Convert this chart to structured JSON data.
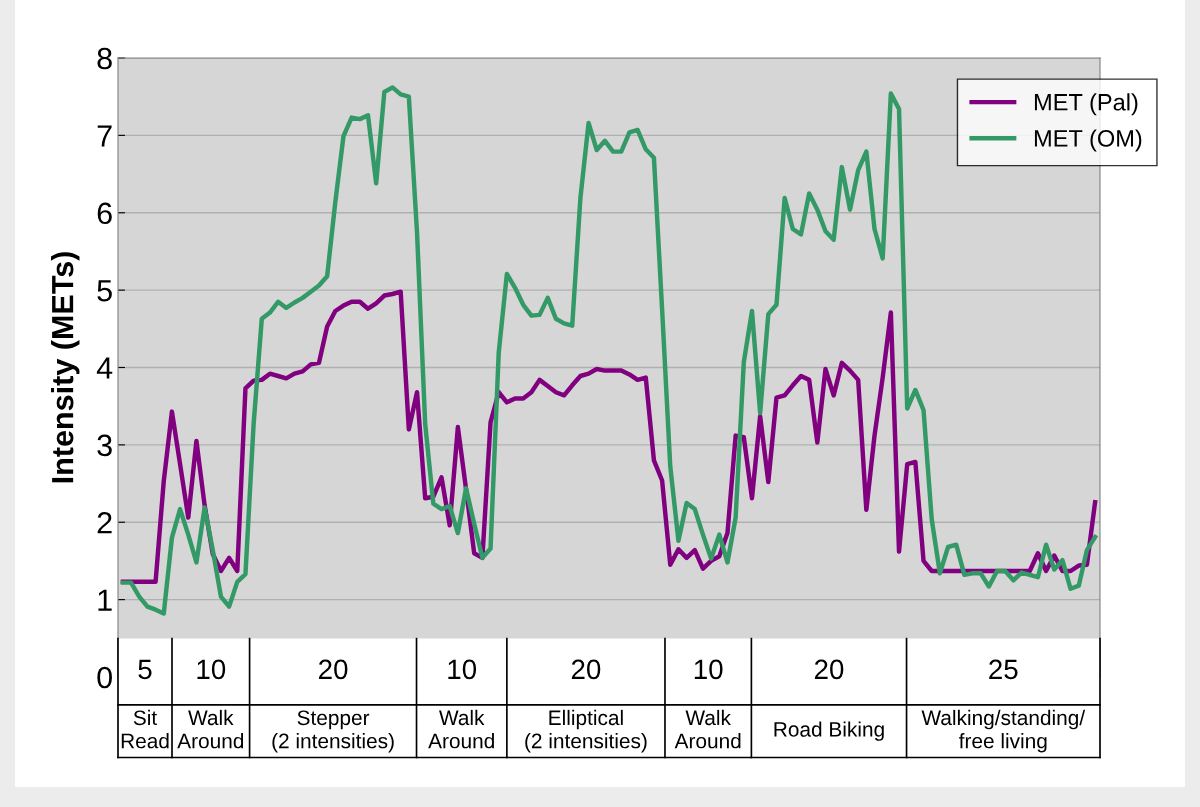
{
  "chart_data": {
    "type": "line",
    "ylabel": "Intensity (METs)",
    "categories": [
      null,
      null,
      null,
      null,
      null,
      null,
      null,
      null,
      null,
      null,
      null,
      null,
      null,
      null,
      null,
      null,
      null,
      null,
      null,
      null,
      null,
      null,
      null,
      null,
      null,
      null,
      null,
      null,
      null,
      null,
      null,
      null,
      null,
      null,
      null,
      null,
      null,
      null,
      null,
      null,
      null,
      null,
      null,
      null,
      null,
      null,
      null,
      null,
      null,
      null,
      null,
      null,
      null,
      null,
      null,
      null,
      null,
      null,
      null,
      null,
      null,
      null,
      null,
      null,
      null,
      null,
      null,
      null,
      null,
      null,
      null,
      null,
      null,
      null,
      null,
      null,
      null,
      null,
      null,
      null,
      null,
      null,
      null,
      null,
      null,
      null,
      null,
      null,
      null,
      null,
      null,
      null,
      null,
      null,
      null,
      null,
      null,
      null,
      null,
      null,
      null,
      null,
      null,
      null,
      null,
      null,
      null,
      null,
      null,
      null,
      null,
      null,
      null,
      null,
      null,
      null,
      null,
      null,
      null,
      null
    ],
    "series": [
      {
        "name": "MET (Pal)",
        "color": "#800080",
        "values": [
          1.23,
          1.23,
          1.23,
          1.23,
          1.23,
          2.53,
          3.43,
          2.75,
          2.06,
          3.05,
          2.22,
          1.59,
          1.37,
          1.54,
          1.37,
          3.73,
          3.83,
          3.84,
          3.92,
          3.89,
          3.86,
          3.92,
          3.95,
          4.04,
          4.06,
          4.53,
          4.73,
          4.8,
          4.85,
          4.85,
          4.76,
          4.83,
          4.93,
          4.95,
          4.98,
          3.2,
          3.68,
          2.31,
          2.33,
          2.58,
          1.96,
          3.23,
          2.43,
          1.6,
          1.54,
          3.29,
          3.68,
          3.55,
          3.6,
          3.6,
          3.68,
          3.84,
          3.76,
          3.68,
          3.64,
          3.77,
          3.89,
          3.92,
          3.98,
          3.96,
          3.96,
          3.96,
          3.91,
          3.84,
          3.87,
          2.8,
          2.54,
          1.45,
          1.65,
          1.54,
          1.64,
          1.4,
          1.5,
          1.56,
          1.86,
          3.12,
          3.1,
          2.31,
          3.37,
          2.52,
          3.61,
          3.64,
          3.77,
          3.89,
          3.84,
          3.03,
          3.98,
          3.64,
          4.06,
          3.96,
          3.84,
          2.16,
          3.12,
          3.87,
          4.71,
          1.62,
          2.75,
          2.78,
          1.5,
          1.37,
          1.37,
          1.37,
          1.37,
          1.37,
          1.37,
          1.37,
          1.37,
          1.37,
          1.37,
          1.37,
          1.37,
          1.37,
          1.6,
          1.37,
          1.57,
          1.37,
          1.37,
          1.44,
          1.45,
          2.26
        ]
      },
      {
        "name": "MET (OM)",
        "color": "#339966",
        "values": [
          1.22,
          1.22,
          1.04,
          0.91,
          0.87,
          0.82,
          1.8,
          2.17,
          1.84,
          1.48,
          2.19,
          1.64,
          1.04,
          0.91,
          1.23,
          1.33,
          3.27,
          4.63,
          4.71,
          4.85,
          4.77,
          4.84,
          4.9,
          4.98,
          5.06,
          5.18,
          6.14,
          6.99,
          7.23,
          7.21,
          7.26,
          6.38,
          7.56,
          7.62,
          7.53,
          7.5,
          5.75,
          3.27,
          2.24,
          2.17,
          2.21,
          1.86,
          2.44,
          1.98,
          1.54,
          1.66,
          4.19,
          5.21,
          5.03,
          4.81,
          4.67,
          4.68,
          4.9,
          4.63,
          4.57,
          4.54,
          6.19,
          7.16,
          6.81,
          6.93,
          6.79,
          6.79,
          7.04,
          7.07,
          6.82,
          6.71,
          4.75,
          2.72,
          1.76,
          2.25,
          2.17,
          1.84,
          1.53,
          1.84,
          1.48,
          2.06,
          4.07,
          4.73,
          3.41,
          4.69,
          4.81,
          6.19,
          5.79,
          5.72,
          6.25,
          6.04,
          5.76,
          5.65,
          6.59,
          6.04,
          6.55,
          6.79,
          5.79,
          5.41,
          7.54,
          7.34,
          3.47,
          3.71,
          3.45,
          2.04,
          1.34,
          1.68,
          1.71,
          1.32,
          1.34,
          1.34,
          1.17,
          1.37,
          1.37,
          1.25,
          1.35,
          1.32,
          1.29,
          1.71,
          1.39,
          1.51,
          1.14,
          1.18,
          1.64,
          1.81
        ]
      }
    ],
    "ylim": [
      0,
      8
    ],
    "yticks": [
      0,
      1,
      2,
      3,
      4,
      5,
      6,
      7,
      8
    ],
    "grid": "y",
    "legend": "top right",
    "marker": "none",
    "line_style": "solid",
    "annotations": [
      "5",
      "10",
      "20",
      "10",
      "20",
      "10",
      "20",
      "25",
      "Sit\nRead",
      "Walk\nAround",
      "Stepper\n(2 intensities)",
      "Walk\nAround",
      "Elliptical\n(2 intensities)",
      "Walk\nAround",
      "Road Biking",
      "Walking/standing/\nfree living"
    ]
  }
}
